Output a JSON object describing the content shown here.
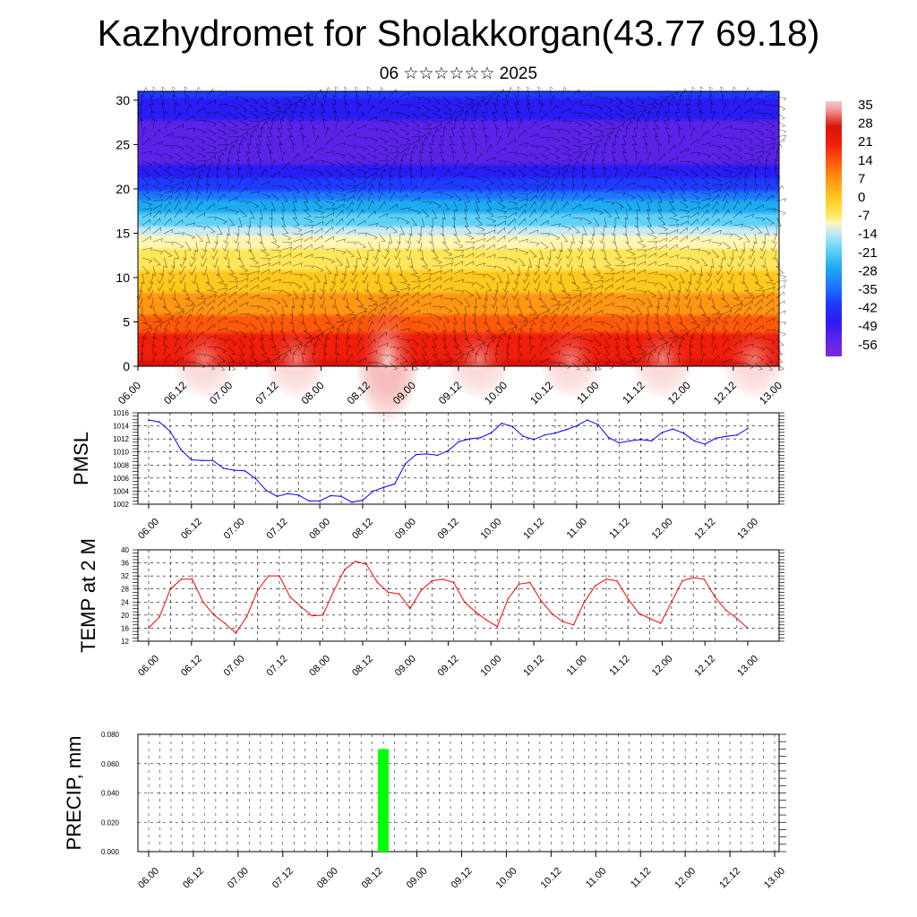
{
  "title": "Kazhydromet for Sholakkorgan(43.77 69.18)",
  "subtitle": "06 ☆☆☆☆☆☆ 2025",
  "time_labels": [
    "06.00",
    "06.12",
    "07.00",
    "07.12",
    "08.00",
    "08.12",
    "09.00",
    "09.12",
    "10.00",
    "10.12",
    "11.00",
    "11.12",
    "12.00",
    "12.12",
    "13.00"
  ],
  "colors": {
    "pmsl_line": "#0000ff",
    "temp_line": "#ff0000",
    "precip_bar": "#00ff00",
    "grid": "#000000"
  },
  "chart_data": [
    {
      "type": "heatmap",
      "name": "cross-section",
      "x": "time",
      "y_ticks": [
        0,
        5,
        10,
        15,
        20,
        25,
        30
      ],
      "ylim": [
        0,
        31
      ],
      "colorbar_labels": [
        "35",
        "28",
        "21",
        "14",
        "7",
        "0",
        "-7",
        "-14",
        "-21",
        "-28",
        "-35",
        "-42",
        "-49",
        "-56"
      ],
      "colorbar_range": [
        -63,
        38
      ],
      "overlay": "wind barbs"
    },
    {
      "type": "line",
      "ylabel": "PMSL",
      "y_ticks": [
        "1002",
        "1004",
        "1006",
        "1008",
        "1010",
        "1012",
        "1014",
        "1016"
      ],
      "ylim": [
        1002,
        1016
      ],
      "grid": true,
      "series": [
        {
          "values": [
            1014.9,
            1014.6,
            1013.2,
            1010.4,
            1008.8,
            1008.7,
            1008.7,
            1007.5,
            1007.2,
            1007.1,
            1005.9,
            1004.1,
            1003.2,
            1003.6,
            1003.4,
            1002.5,
            1002.5,
            1003.3,
            1003.2,
            1002.3,
            1002.6,
            1004.0,
            1004.6,
            1005.1,
            1008.2,
            1009.6,
            1009.7,
            1009.5,
            1010.2,
            1011.6,
            1012.0,
            1012.2,
            1012.9,
            1014.4,
            1013.9,
            1012.4,
            1011.9,
            1012.6,
            1012.9,
            1013.4,
            1014.0,
            1014.9,
            1014.2,
            1012.2,
            1011.4,
            1011.7,
            1011.9,
            1011.7,
            1013.0,
            1013.5,
            1012.9,
            1011.7,
            1011.2,
            1012.1,
            1012.4,
            1012.6,
            1013.6
          ]
        }
      ]
    },
    {
      "type": "line",
      "ylabel": "TEMP at 2 M",
      "y_ticks": [
        "12",
        "16",
        "20",
        "24",
        "28",
        "32",
        "36",
        "40"
      ],
      "ylim": [
        12,
        40
      ],
      "grid": true,
      "series": [
        {
          "values": [
            16.0,
            19.5,
            28.0,
            31.0,
            31.0,
            24.0,
            20.0,
            17.5,
            14.5,
            19.5,
            27.5,
            32.0,
            32.0,
            25.5,
            22.5,
            19.8,
            20.0,
            27.5,
            34.0,
            36.5,
            35.5,
            30.0,
            27.0,
            26.5,
            22.0,
            27.5,
            30.5,
            31.0,
            30.0,
            24.0,
            21.0,
            18.5,
            16.5,
            25.0,
            29.5,
            30.0,
            24.5,
            20.5,
            18.0,
            17.0,
            24.0,
            29.0,
            31.0,
            30.5,
            25.0,
            20.5,
            19.0,
            17.5,
            24.0,
            30.5,
            31.5,
            31.0,
            25.5,
            21.5,
            19.0,
            16.0
          ]
        }
      ]
    },
    {
      "type": "bar",
      "ylabel": "PRECIP, mm",
      "y_ticks": [
        "0.000",
        "0.020",
        "0.040",
        "0.060",
        "0.080"
      ],
      "ylim": [
        0,
        0.08
      ],
      "grid": true,
      "bars": [
        {
          "time": "08.15",
          "value": 0.07
        }
      ]
    }
  ]
}
